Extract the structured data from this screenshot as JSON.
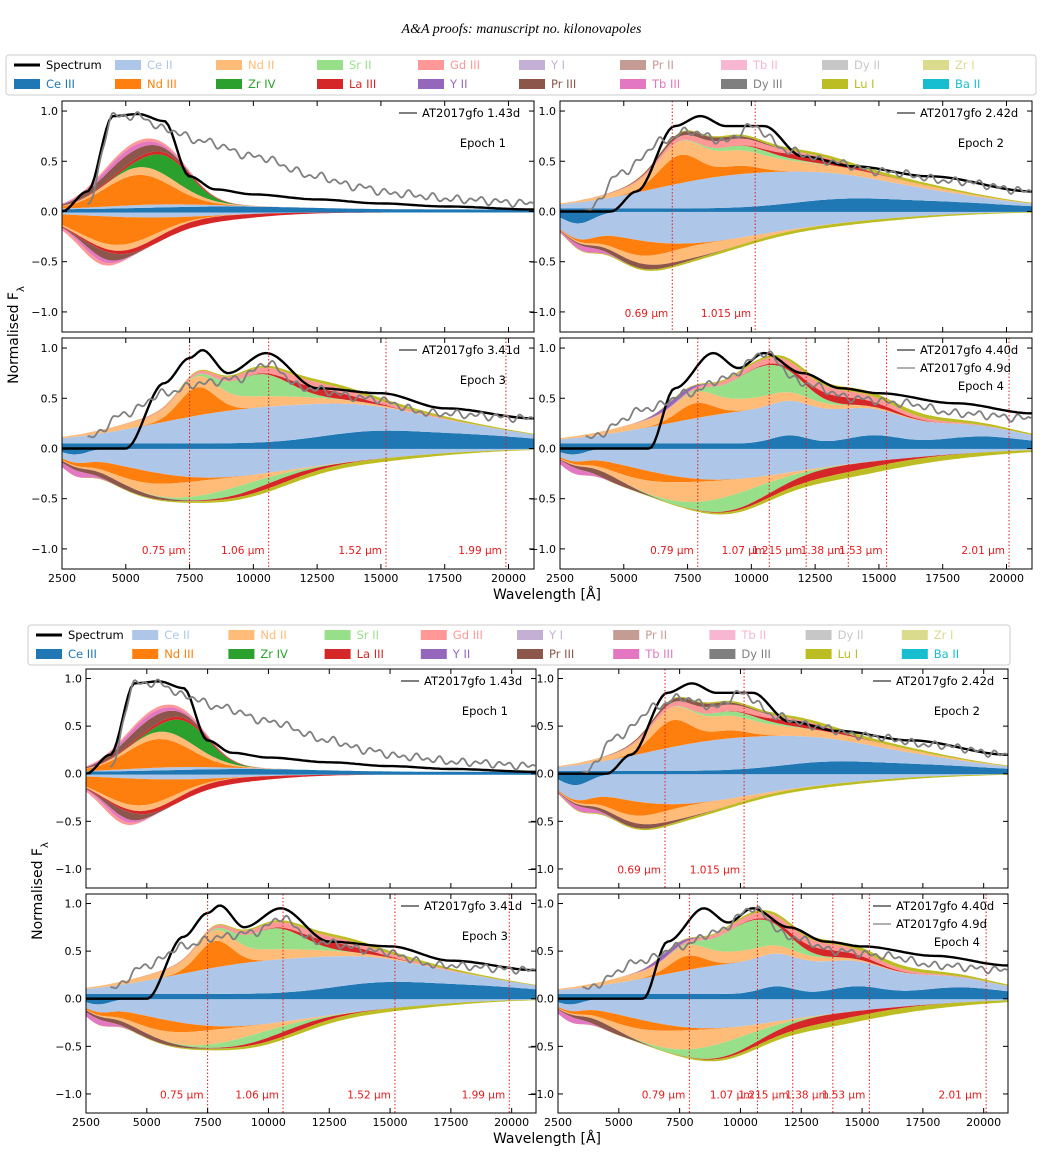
{
  "header": "A&A proofs: manuscript no. kilonovapoles",
  "legend_items": [
    {
      "label": "Spectrum",
      "color": "#000000",
      "kind": "line",
      "text_color": "#000000"
    },
    {
      "label": "Ce II",
      "color": "#aec7e8",
      "kind": "patch",
      "text_color": "#aec7e8"
    },
    {
      "label": "Nd II",
      "color": "#ffbb78",
      "kind": "patch",
      "text_color": "#ffbb78"
    },
    {
      "label": "Sr II",
      "color": "#98df8a",
      "kind": "patch",
      "text_color": "#98df8a"
    },
    {
      "label": "Gd III",
      "color": "#ff9896",
      "kind": "patch",
      "text_color": "#ff9896"
    },
    {
      "label": "Y I",
      "color": "#c5b0d5",
      "kind": "patch",
      "text_color": "#c5b0d5"
    },
    {
      "label": "Pr II",
      "color": "#c49c94",
      "kind": "patch",
      "text_color": "#c49c94"
    },
    {
      "label": "Tb II",
      "color": "#f7b6d2",
      "kind": "patch",
      "text_color": "#f7b6d2"
    },
    {
      "label": "Dy II",
      "color": "#c7c7c7",
      "kind": "patch",
      "text_color": "#c7c7c7"
    },
    {
      "label": "Zr I",
      "color": "#dbdb8d",
      "kind": "patch",
      "text_color": "#dbdb8d"
    },
    {
      "label": "Ce III",
      "color": "#1f77b4",
      "kind": "patch",
      "text_color": "#1f77b4"
    },
    {
      "label": "Nd III",
      "color": "#ff7f0e",
      "kind": "patch",
      "text_color": "#ff7f0e"
    },
    {
      "label": "Zr IV",
      "color": "#2ca02c",
      "kind": "patch",
      "text_color": "#2ca02c"
    },
    {
      "label": "La III",
      "color": "#d62728",
      "kind": "patch",
      "text_color": "#d62728"
    },
    {
      "label": "Y II",
      "color": "#9467bd",
      "kind": "patch",
      "text_color": "#9467bd"
    },
    {
      "label": "Pr III",
      "color": "#8c564b",
      "kind": "patch",
      "text_color": "#8c564b"
    },
    {
      "label": "Tb III",
      "color": "#e377c2",
      "kind": "patch",
      "text_color": "#e377c2"
    },
    {
      "label": "Dy III",
      "color": "#7f7f7f",
      "kind": "patch",
      "text_color": "#7f7f7f"
    },
    {
      "label": "Lu I",
      "color": "#bcbd22",
      "kind": "patch",
      "text_color": "#bcbd22"
    },
    {
      "label": "Ba II",
      "color": "#17becf",
      "kind": "patch",
      "text_color": "#17becf"
    }
  ],
  "shared_axes": {
    "xlabel": "Wavelength [Å]",
    "ylabel": "Normalised F",
    "ylabel_sub": "λ",
    "xlim": [
      2500,
      21000
    ],
    "ylim": [
      -1.2,
      1.1
    ],
    "xticks": [
      2500,
      5000,
      7500,
      10000,
      12500,
      15000,
      17500,
      20000
    ],
    "yticks": [
      1.0,
      0.5,
      0.0,
      -0.5,
      -1.0
    ],
    "ytick_labels": [
      "1.0",
      "0.5",
      "0.0",
      "−0.5",
      "−1.0"
    ]
  },
  "figures": [
    {
      "name": "upper-figure",
      "panels": [
        {
          "epoch_label": "Epoch 1",
          "obs_labels": [
            "AT2017gfo 1.43d"
          ],
          "obs_colors": [
            "#7f7f7f"
          ],
          "lines": []
        },
        {
          "epoch_label": "Epoch 2",
          "obs_labels": [
            "AT2017gfo 2.42d"
          ],
          "obs_colors": [
            "#7f7f7f"
          ],
          "lines": [
            {
              "x": 6900,
              "label": "0.69 μm"
            },
            {
              "x": 10150,
              "label": "1.015 μm"
            }
          ]
        },
        {
          "epoch_label": "Epoch 3",
          "obs_labels": [
            "AT2017gfo 3.41d"
          ],
          "obs_colors": [
            "#7f7f7f"
          ],
          "lines": [
            {
              "x": 7500,
              "label": "0.75 μm"
            },
            {
              "x": 10600,
              "label": "1.06 μm"
            },
            {
              "x": 15200,
              "label": "1.52 μm"
            },
            {
              "x": 19900,
              "label": "1.99 μm"
            }
          ]
        },
        {
          "epoch_label": "Epoch 4",
          "obs_labels": [
            "AT2017gfo 4.40d",
            "AT2017gfo 4.9d"
          ],
          "obs_colors": [
            "#7f7f7f",
            "#b0b0b0"
          ],
          "lines": [
            {
              "x": 7900,
              "label": "0.79 μm"
            },
            {
              "x": 10700,
              "label": "1.07 μm"
            },
            {
              "x": 12150,
              "label": "1.215 μm"
            },
            {
              "x": 13800,
              "label": "1.38 μm"
            },
            {
              "x": 15300,
              "label": "1.53 μm"
            },
            {
              "x": 20100,
              "label": "2.01 μm"
            }
          ]
        }
      ]
    },
    {
      "name": "lower-figure",
      "panels": [
        {
          "epoch_label": "Epoch 1",
          "obs_labels": [
            "AT2017gfo 1.43d"
          ],
          "obs_colors": [
            "#7f7f7f"
          ],
          "lines": []
        },
        {
          "epoch_label": "Epoch 2",
          "obs_labels": [
            "AT2017gfo 2.42d"
          ],
          "obs_colors": [
            "#7f7f7f"
          ],
          "lines": [
            {
              "x": 6900,
              "label": "0.69 μm"
            },
            {
              "x": 10150,
              "label": "1.015 μm"
            }
          ]
        },
        {
          "epoch_label": "Epoch 3",
          "obs_labels": [
            "AT2017gfo 3.41d"
          ],
          "obs_colors": [
            "#7f7f7f"
          ],
          "lines": [
            {
              "x": 7500,
              "label": "0.75 μm"
            },
            {
              "x": 10600,
              "label": "1.06 μm"
            },
            {
              "x": 15200,
              "label": "1.52 μm"
            },
            {
              "x": 19900,
              "label": "1.99 μm"
            }
          ]
        },
        {
          "epoch_label": "Epoch 4",
          "obs_labels": [
            "AT2017gfo 4.40d",
            "AT2017gfo 4.9d"
          ],
          "obs_colors": [
            "#7f7f7f",
            "#b0b0b0"
          ],
          "lines": [
            {
              "x": 7900,
              "label": "0.79 μm"
            },
            {
              "x": 10700,
              "label": "1.07 μm"
            },
            {
              "x": 12150,
              "label": "1.215 μm"
            },
            {
              "x": 13800,
              "label": "1.38 μm"
            },
            {
              "x": 15300,
              "label": "1.53 μm"
            },
            {
              "x": 20100,
              "label": "2.01 μm"
            }
          ]
        }
      ]
    }
  ],
  "chart_data": [
    {
      "type": "area",
      "title": "",
      "xlabel": "Wavelength [Å]",
      "ylabel": "Normalised Fλ",
      "xlim": [
        2500,
        21000
      ],
      "ylim": [
        -1.2,
        1.1
      ],
      "grid": false,
      "legend": "top",
      "panel": "Epoch 1",
      "series": [
        {
          "name": "Spectrum",
          "x": [
            2500,
            3500,
            4500,
            5500,
            6500,
            7500,
            8500,
            10000,
            12500,
            15000,
            17500,
            21000
          ],
          "values": [
            0.0,
            0.2,
            0.95,
            0.97,
            0.9,
            0.35,
            0.22,
            0.17,
            0.12,
            0.08,
            0.05,
            0.02
          ]
        },
        {
          "name": "AT2017gfo 1.43d",
          "x": [
            3500,
            4500,
            5500,
            6500,
            8000,
            10000,
            12500,
            14000,
            15500,
            18000,
            21000
          ],
          "values": [
            0.05,
            0.95,
            0.95,
            0.82,
            0.7,
            0.55,
            0.35,
            0.25,
            0.18,
            0.12,
            0.08
          ]
        }
      ]
    },
    {
      "type": "area",
      "panel": "Epoch 2",
      "title": "",
      "xlabel": "Wavelength [Å]",
      "ylabel": "Normalised Fλ",
      "xlim": [
        2500,
        21000
      ],
      "ylim": [
        -1.2,
        1.1
      ],
      "series": [
        {
          "name": "Spectrum",
          "x": [
            2500,
            4500,
            5500,
            7000,
            8000,
            9000,
            10500,
            12000,
            14000,
            17000,
            21000
          ],
          "values": [
            0.0,
            0.0,
            0.2,
            0.85,
            0.95,
            0.85,
            0.85,
            0.55,
            0.45,
            0.35,
            0.2
          ]
        },
        {
          "name": "AT2017gfo 2.42d",
          "x": [
            3500,
            5000,
            6500,
            7500,
            9000,
            10000,
            11500,
            13000,
            15000,
            18000,
            21000
          ],
          "values": [
            0.0,
            0.4,
            0.7,
            0.8,
            0.7,
            0.85,
            0.6,
            0.5,
            0.4,
            0.3,
            0.2
          ]
        }
      ]
    },
    {
      "type": "area",
      "panel": "Epoch 3",
      "title": "",
      "xlabel": "Wavelength [Å]",
      "ylabel": "Normalised Fλ",
      "xlim": [
        2500,
        21000
      ],
      "ylim": [
        -1.2,
        1.1
      ],
      "series": [
        {
          "name": "Spectrum",
          "x": [
            2500,
            5000,
            6500,
            7500,
            8000,
            9000,
            10500,
            12500,
            15000,
            17500,
            21000
          ],
          "values": [
            0.0,
            0.0,
            0.65,
            0.9,
            0.98,
            0.75,
            0.95,
            0.6,
            0.55,
            0.4,
            0.3
          ]
        },
        {
          "name": "AT2017gfo 3.41d",
          "x": [
            3500,
            5000,
            6500,
            8000,
            9500,
            10500,
            12000,
            14500,
            17000,
            21000
          ],
          "values": [
            0.1,
            0.35,
            0.55,
            0.65,
            0.7,
            0.85,
            0.6,
            0.5,
            0.35,
            0.3
          ]
        }
      ]
    },
    {
      "type": "area",
      "panel": "Epoch 4",
      "title": "",
      "xlabel": "Wavelength [Å]",
      "ylabel": "Normalised Fλ",
      "xlim": [
        2500,
        21000
      ],
      "ylim": [
        -1.2,
        1.1
      ],
      "series": [
        {
          "name": "Spectrum",
          "x": [
            2500,
            6000,
            7000,
            8500,
            9500,
            10500,
            12000,
            13500,
            15000,
            18000,
            21000
          ],
          "values": [
            0.0,
            0.0,
            0.6,
            0.95,
            0.8,
            0.95,
            0.75,
            0.6,
            0.55,
            0.45,
            0.35
          ]
        },
        {
          "name": "AT2017gfo 4.40d",
          "x": [
            3500,
            6000,
            7500,
            9000,
            10500,
            12000,
            14000,
            16000,
            18000,
            21000
          ],
          "values": [
            0.1,
            0.4,
            0.55,
            0.7,
            0.95,
            0.65,
            0.5,
            0.45,
            0.35,
            0.3
          ]
        }
      ]
    }
  ]
}
